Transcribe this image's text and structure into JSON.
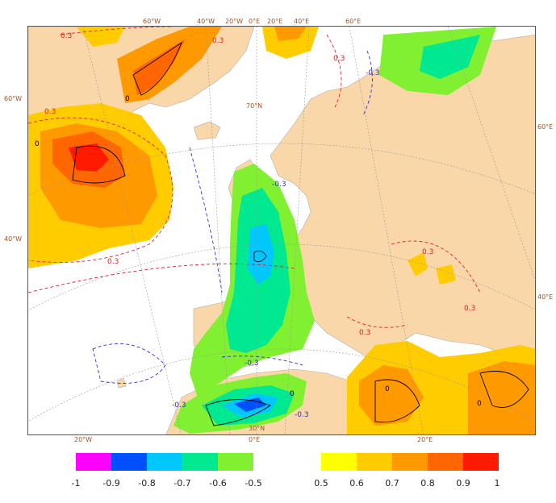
{
  "colors": {
    "land": "#f9d7a8",
    "sea": "#ffffff",
    "neg_scale": [
      "#ff00ff",
      "#0050ff",
      "#00c8ff",
      "#00e890",
      "#80f030"
    ],
    "pos_scale": [
      "#ffff00",
      "#ffcc00",
      "#ff9900",
      "#ff6600",
      "#ff1a00"
    ],
    "contour_pos": "#e0202a",
    "contour_neg": "#3030d0",
    "contour_zero": "#000000",
    "graticule": "#999999"
  },
  "graticule_labels": {
    "top": [
      "60°W",
      "40°W",
      "20°W",
      "0°E",
      "20°E",
      "40°E",
      "60°E"
    ],
    "left": [
      "60°W",
      "40°W"
    ],
    "right": [
      "60°E",
      "40°E"
    ],
    "bottom": [
      "20°W",
      "0°E",
      "20°E"
    ],
    "inner": [
      "70°N",
      "30°N"
    ]
  },
  "contour_labels": {
    "pos": [
      "0.3",
      "0.3",
      "0.3",
      "0.3",
      "0.3",
      "0.3",
      "0.3",
      "0.3"
    ],
    "neg": [
      "-0.3",
      "-0.3",
      "-0.3",
      "-0.3",
      "-0.3"
    ],
    "zero": [
      "0",
      "0",
      "0",
      "0",
      "0"
    ]
  },
  "legend": {
    "negative": [
      "-1",
      "-0.9",
      "-0.8",
      "-0.7",
      "-0.6",
      "-0.5"
    ],
    "positive": [
      "0.5",
      "0.6",
      "0.7",
      "0.8",
      "0.9",
      "1"
    ]
  }
}
